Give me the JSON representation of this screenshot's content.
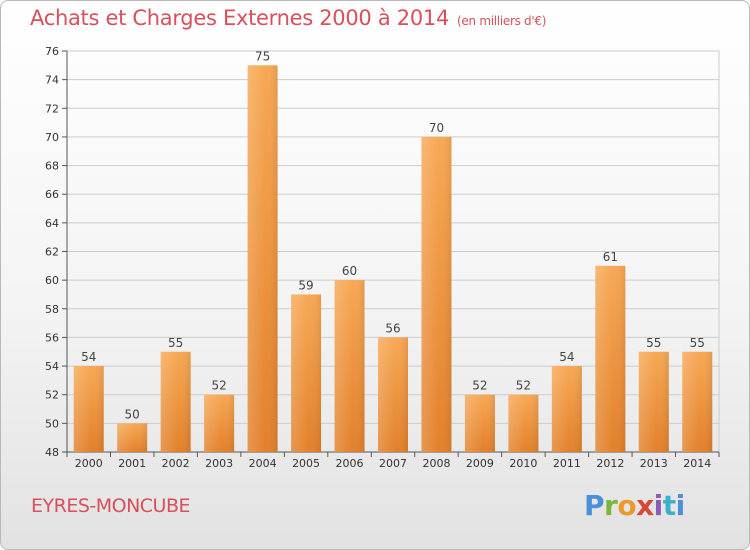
{
  "title": "Achats et Charges Externes 2000 à 2014",
  "subtitle": "(en milliers d'€)",
  "commune": "EYRES-MONCUBE",
  "logo": "Proxiti",
  "colors": {
    "bar_top": "#f7a854",
    "bar_bottom": "#e2802a",
    "title": "#d94f5c",
    "grid": "#cccccc"
  },
  "chart_data": {
    "type": "bar",
    "title": "Achats et Charges Externes 2000 à 2014",
    "subtitle": "(en milliers d'€)",
    "categories": [
      "2000",
      "2001",
      "2002",
      "2003",
      "2004",
      "2005",
      "2006",
      "2007",
      "2008",
      "2009",
      "2010",
      "2011",
      "2012",
      "2013",
      "2014"
    ],
    "values": [
      54,
      50,
      55,
      52,
      75,
      59,
      60,
      56,
      70,
      52,
      52,
      54,
      61,
      55,
      55
    ],
    "ylim": [
      48,
      76
    ],
    "yticks": [
      48,
      50,
      52,
      54,
      56,
      58,
      60,
      62,
      64,
      66,
      68,
      70,
      72,
      74,
      76
    ],
    "grid": true,
    "data_labels": true
  }
}
